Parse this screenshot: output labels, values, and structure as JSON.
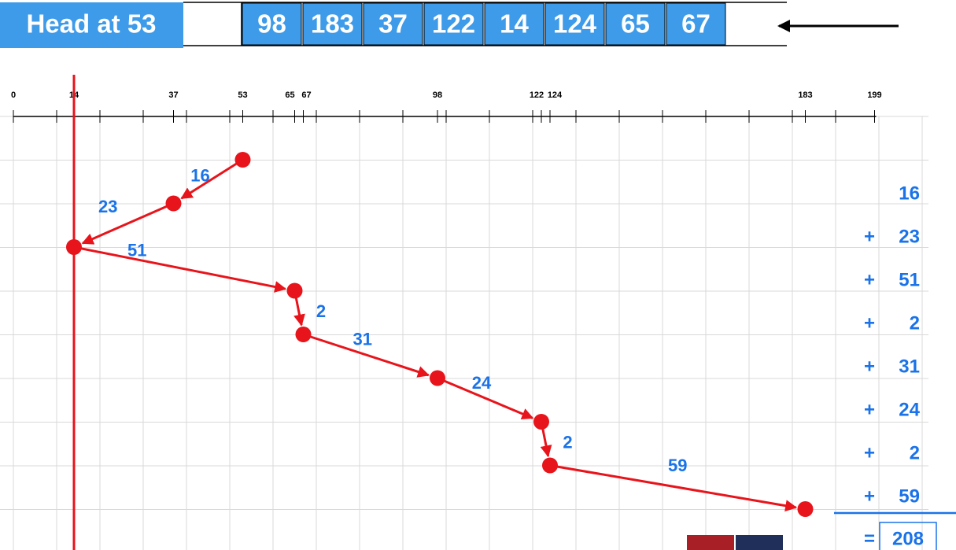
{
  "header": {
    "title": "Head at 53",
    "queue": [
      98,
      183,
      37,
      122,
      14,
      124,
      65,
      67
    ]
  },
  "axis": {
    "ticks": [
      0,
      14,
      37,
      53,
      65,
      67,
      98,
      122,
      124,
      183,
      199
    ]
  },
  "seek_order": [
    53,
    37,
    14,
    65,
    67,
    98,
    122,
    124,
    183
  ],
  "distances": [
    16,
    23,
    51,
    2,
    31,
    24,
    2,
    59
  ],
  "sum": {
    "plus_sign": "+",
    "equals_sign": "=",
    "total": 208
  }
}
